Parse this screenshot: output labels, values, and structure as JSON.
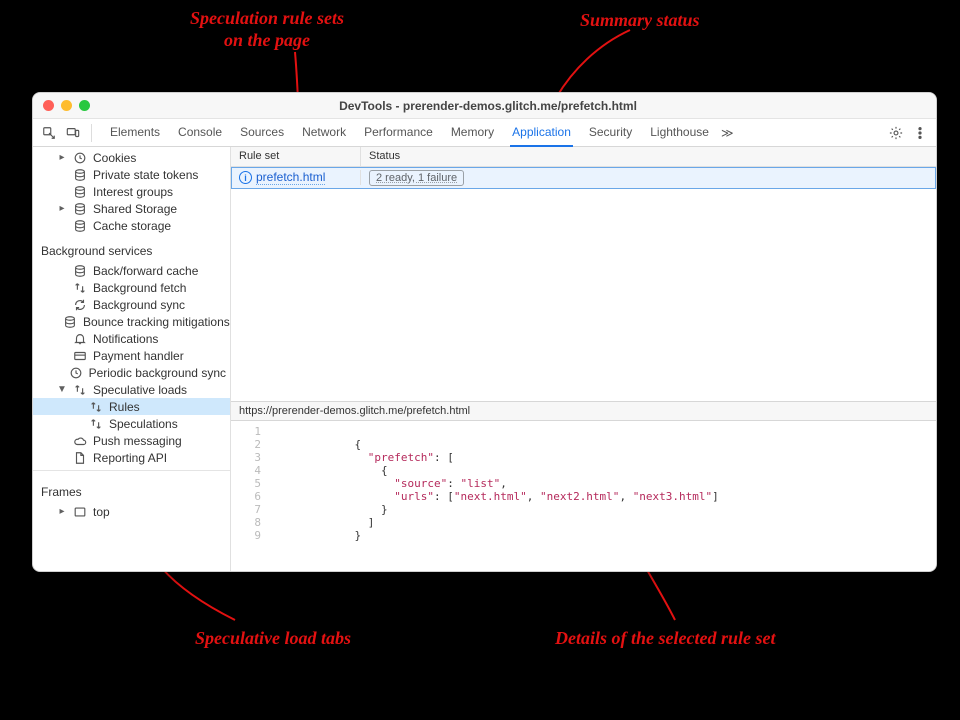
{
  "annotations": {
    "rule_sets": "Speculation rule sets\non the page",
    "summary_status": "Summary status",
    "load_tabs": "Speculative load tabs",
    "details": "Details of the selected rule set",
    "color": "#e31111"
  },
  "window": {
    "title": "DevTools - prerender-demos.glitch.me/prefetch.html",
    "traffic_colors": [
      "#ff5f57",
      "#febc2e",
      "#28c840"
    ]
  },
  "toolbar": {
    "tabs": [
      "Elements",
      "Console",
      "Sources",
      "Network",
      "Performance",
      "Memory",
      "Application",
      "Security",
      "Lighthouse"
    ],
    "active_tab": "Application",
    "more": "≫"
  },
  "sidebar": {
    "group1": [
      {
        "caret": "▸",
        "icon": "clock",
        "label": "Cookies"
      },
      {
        "caret": "",
        "icon": "db",
        "label": "Private state tokens"
      },
      {
        "caret": "",
        "icon": "db",
        "label": "Interest groups"
      },
      {
        "caret": "▸",
        "icon": "db",
        "label": "Shared Storage"
      },
      {
        "caret": "",
        "icon": "db",
        "label": "Cache storage"
      }
    ],
    "section_bg": "Background services",
    "group2": [
      {
        "icon": "db",
        "label": "Back/forward cache"
      },
      {
        "icon": "arrows",
        "label": "Background fetch"
      },
      {
        "icon": "sync",
        "label": "Background sync"
      },
      {
        "icon": "db",
        "label": "Bounce tracking mitigations"
      },
      {
        "icon": "bell",
        "label": "Notifications"
      },
      {
        "icon": "card",
        "label": "Payment handler"
      },
      {
        "icon": "clock",
        "label": "Periodic background sync"
      }
    ],
    "spec_loads": {
      "label": "Speculative loads",
      "children": [
        {
          "icon": "arrows",
          "label": "Rules",
          "selected": true
        },
        {
          "icon": "arrows",
          "label": "Speculations"
        }
      ]
    },
    "group3": [
      {
        "icon": "cloud",
        "label": "Push messaging"
      },
      {
        "icon": "doc",
        "label": "Reporting API"
      }
    ],
    "section_frames": "Frames",
    "frames": [
      {
        "caret": "▸",
        "icon": "frame",
        "label": "top"
      }
    ]
  },
  "panel": {
    "columns": {
      "rule": "Rule set",
      "status": "Status"
    },
    "row": {
      "rule_link": "prefetch.html",
      "status_text": "2 ready, 1 failure"
    },
    "detail_url": "https://prerender-demos.glitch.me/prefetch.html",
    "code": {
      "lines": [
        "",
        "{",
        "  \"prefetch\": [",
        "    {",
        "      \"source\": \"list\",",
        "      \"urls\": [\"next.html\", \"next2.html\", \"next3.html\"]",
        "    }",
        "  ]",
        "}"
      ],
      "key_color": "#b5295b",
      "indent_unit": "            "
    }
  },
  "colors": {
    "accent": "#1a73e8",
    "row_bg": "#eaf3fe",
    "border": "#d7d7d7"
  }
}
